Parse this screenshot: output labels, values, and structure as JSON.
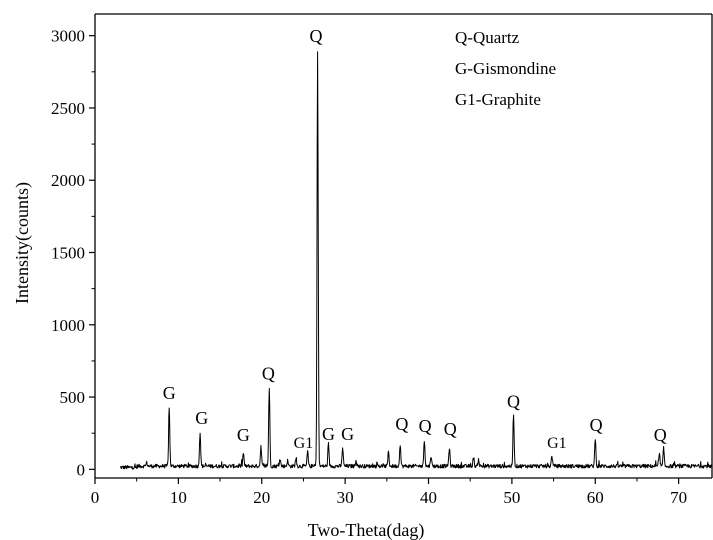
{
  "chart_data": {
    "type": "line",
    "xlabel": "Two-Theta(dag)",
    "ylabel": "Intensity(counts)",
    "xlim": [
      0,
      74
    ],
    "ylim": [
      -60,
      3150
    ],
    "x_ticks": [
      0,
      10,
      20,
      30,
      40,
      50,
      60,
      70
    ],
    "y_ticks": [
      0,
      500,
      1000,
      1500,
      2000,
      2500,
      3000
    ],
    "legend": [
      "Q-Quartz",
      "G-Gismondine",
      "G1-Graphite"
    ],
    "legend_position": "top-right",
    "series": [
      {
        "baseline": 22,
        "x_range": [
          3.0,
          74
        ],
        "peaks": [
          {
            "x": 6.2,
            "y": 45
          },
          {
            "x": 8.9,
            "y": 430
          },
          {
            "x": 12.6,
            "y": 255
          },
          {
            "x": 17.8,
            "y": 115
          },
          {
            "x": 19.9,
            "y": 160
          },
          {
            "x": 20.9,
            "y": 565
          },
          {
            "x": 22.2,
            "y": 70
          },
          {
            "x": 23.1,
            "y": 60
          },
          {
            "x": 24.1,
            "y": 75
          },
          {
            "x": 25.5,
            "y": 125
          },
          {
            "x": 26.7,
            "y": 2890
          },
          {
            "x": 28.0,
            "y": 160
          },
          {
            "x": 29.7,
            "y": 150
          },
          {
            "x": 31.3,
            "y": 65
          },
          {
            "x": 35.2,
            "y": 125
          },
          {
            "x": 36.6,
            "y": 175
          },
          {
            "x": 39.5,
            "y": 205
          },
          {
            "x": 40.3,
            "y": 95
          },
          {
            "x": 42.5,
            "y": 150
          },
          {
            "x": 45.4,
            "y": 80
          },
          {
            "x": 46.0,
            "y": 70
          },
          {
            "x": 50.2,
            "y": 365
          },
          {
            "x": 54.8,
            "y": 95
          },
          {
            "x": 60.0,
            "y": 215
          },
          {
            "x": 67.7,
            "y": 105
          },
          {
            "x": 68.2,
            "y": 145
          }
        ]
      }
    ],
    "annotations": [
      {
        "text": "G",
        "x": 8.9,
        "y": 445
      },
      {
        "text": "G",
        "x": 12.8,
        "y": 272
      },
      {
        "text": "G",
        "x": 17.8,
        "y": 155
      },
      {
        "text": "Q",
        "x": 20.8,
        "y": 580
      },
      {
        "text": "G1",
        "x": 25.0,
        "y": 105
      },
      {
        "text": "Q",
        "x": 26.5,
        "y": 2915
      },
      {
        "text": "G",
        "x": 28.0,
        "y": 160
      },
      {
        "text": "G",
        "x": 30.3,
        "y": 160
      },
      {
        "text": "Q",
        "x": 36.8,
        "y": 230
      },
      {
        "text": "Q",
        "x": 39.6,
        "y": 215
      },
      {
        "text": "Q",
        "x": 42.6,
        "y": 195
      },
      {
        "text": "Q",
        "x": 50.2,
        "y": 385
      },
      {
        "text": "G1",
        "x": 55.4,
        "y": 105
      },
      {
        "text": "Q",
        "x": 60.1,
        "y": 225
      },
      {
        "text": "Q",
        "x": 67.8,
        "y": 155
      }
    ]
  }
}
